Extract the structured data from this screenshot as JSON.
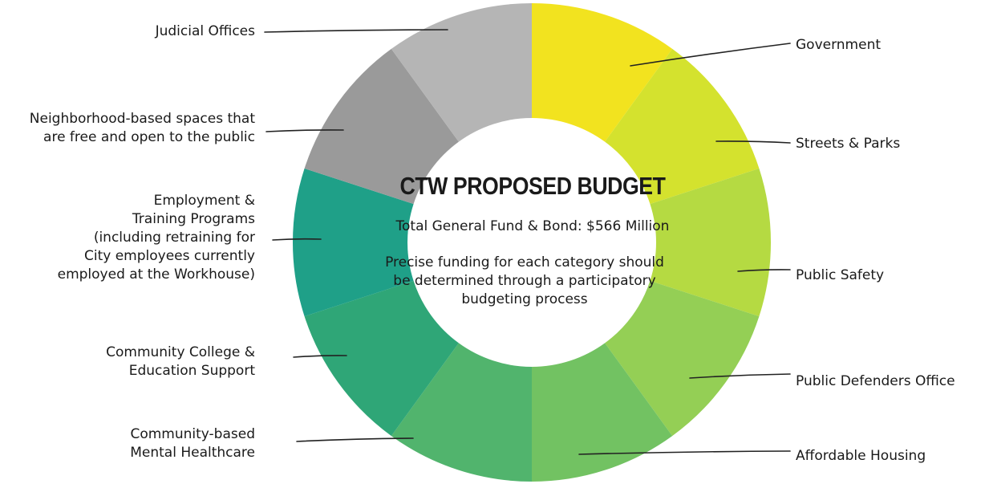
{
  "chart_data": {
    "type": "pie",
    "title": "CTW PROPOSED BUDGET",
    "subtitle": "Total General Fund & Bond: $566 Million",
    "note": "Precise funding for each category should\nbe determined through a participatory\nbudgeting process",
    "categories": [
      "Government",
      "Streets & Parks",
      "Public Safety",
      "Public Defenders Office",
      "Affordable Housing",
      "Community-based\nMental Healthcare",
      "Community College &\nEducation Support",
      "Employment &\nTraining Programs\n(including retraining for\nCity employees currently\nemployed at the Workhouse)",
      "Neighborhood-based spaces that\nare free and open to the public",
      "Judicial Offices"
    ],
    "values": [
      1,
      1,
      1,
      1,
      1,
      1,
      1,
      1,
      1,
      1
    ],
    "colors": [
      "#f2e31f",
      "#d4e22e",
      "#b5da42",
      "#94cf55",
      "#72c262",
      "#51b46d",
      "#2fa677",
      "#1fa088",
      "#9a9a9a",
      "#b5b5b5"
    ]
  }
}
